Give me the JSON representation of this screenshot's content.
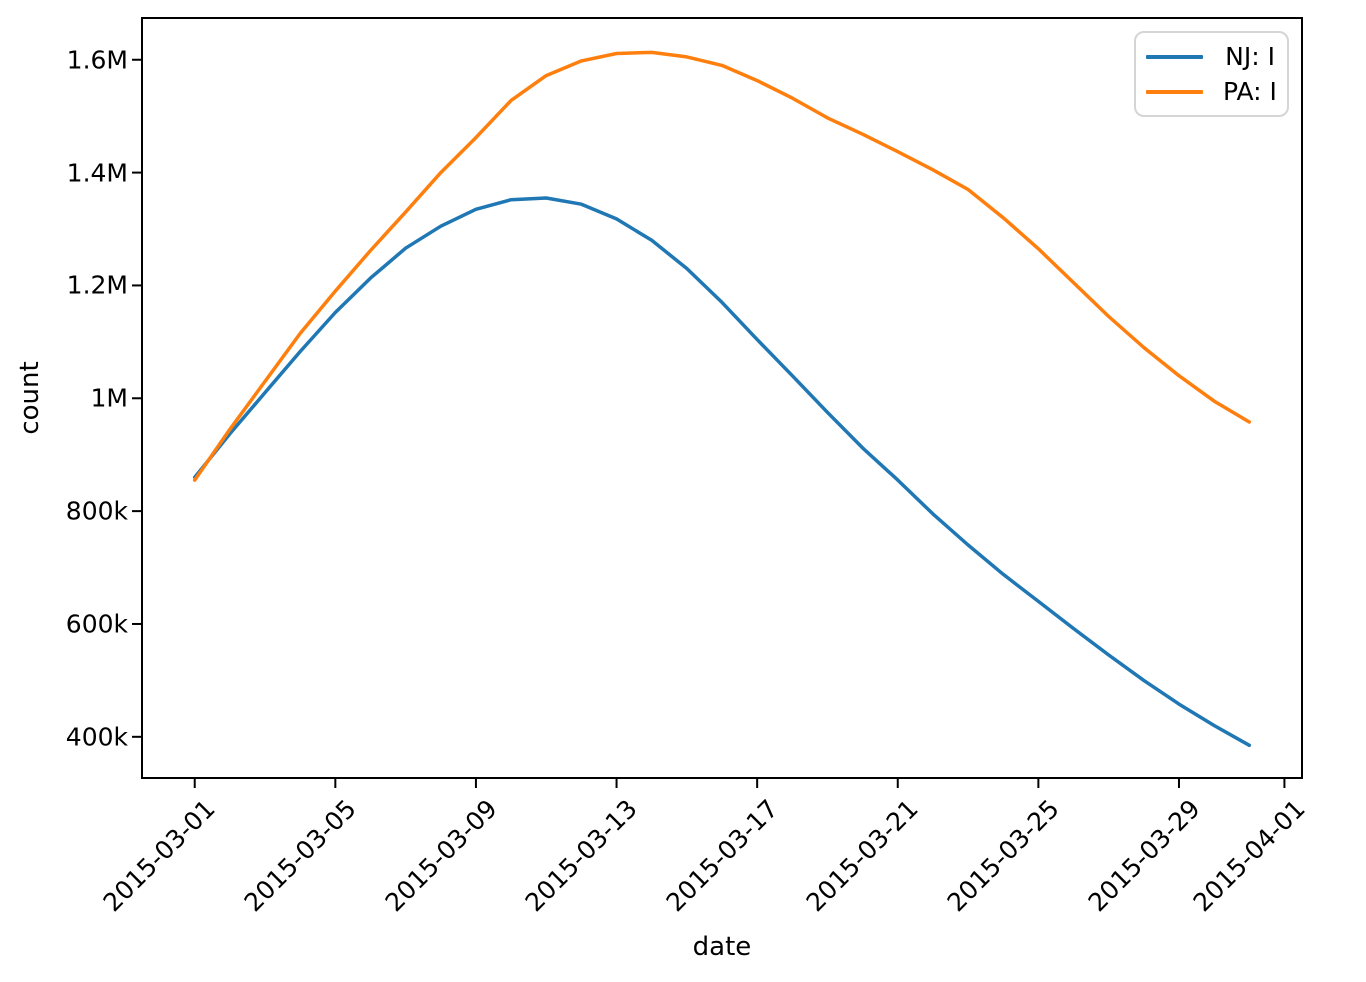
{
  "chart_data": {
    "type": "line",
    "title": "",
    "xlabel": "date",
    "ylabel": "count",
    "grid": false,
    "legend_position": "upper right",
    "x": [
      "2015-03-01",
      "2015-03-02",
      "2015-03-03",
      "2015-03-04",
      "2015-03-05",
      "2015-03-06",
      "2015-03-07",
      "2015-03-08",
      "2015-03-09",
      "2015-03-10",
      "2015-03-11",
      "2015-03-12",
      "2015-03-13",
      "2015-03-14",
      "2015-03-15",
      "2015-03-16",
      "2015-03-17",
      "2015-03-18",
      "2015-03-19",
      "2015-03-20",
      "2015-03-21",
      "2015-03-22",
      "2015-03-23",
      "2015-03-24",
      "2015-03-25",
      "2015-03-26",
      "2015-03-27",
      "2015-03-28",
      "2015-03-29",
      "2015-03-30",
      "2015-03-31"
    ],
    "series": [
      {
        "name": "NJ: I",
        "color": "#1f77b4",
        "values": [
          860000,
          937000,
          1010000,
          1083000,
          1152000,
          1213000,
          1266000,
          1305000,
          1335000,
          1352000,
          1355000,
          1344000,
          1318000,
          1280000,
          1230000,
          1170000,
          1104000,
          1040000,
          975000,
          912000,
          855000,
          795000,
          740000,
          688000,
          640000,
          592000,
          545000,
          500000,
          458000,
          420000,
          385000
        ]
      },
      {
        "name": "PA: I",
        "color": "#ff7f0e",
        "values": [
          855000,
          945000,
          1030000,
          1115000,
          1190000,
          1262000,
          1330000,
          1400000,
          1462000,
          1528000,
          1572000,
          1598000,
          1611000,
          1613000,
          1605000,
          1590000,
          1563000,
          1532000,
          1497000,
          1468000,
          1437000,
          1405000,
          1370000,
          1320000,
          1265000,
          1205000,
          1145000,
          1090000,
          1040000,
          995000,
          958000
        ]
      }
    ],
    "xlim_days": [
      -1.5,
      31.5
    ],
    "ylim": [
      327000,
      1674000
    ],
    "ytick_values": [
      400000,
      600000,
      800000,
      1000000,
      1200000,
      1400000,
      1600000
    ],
    "ytick_labels": [
      "400k",
      "600k",
      "800k",
      "1M",
      "1.2M",
      "1.4M",
      "1.6M"
    ],
    "xtick_day_indices": [
      0,
      4,
      8,
      12,
      16,
      20,
      24,
      28,
      31
    ],
    "xtick_labels": [
      "2015-03-01",
      "2015-03-05",
      "2015-03-09",
      "2015-03-13",
      "2015-03-17",
      "2015-03-21",
      "2015-03-25",
      "2015-03-29",
      "2015-04-01"
    ]
  },
  "axes": {
    "xlabel": "date",
    "ylabel": "count"
  },
  "legend": {
    "items": [
      {
        "label": "NJ: I",
        "color": "#1f77b4"
      },
      {
        "label": "PA: I",
        "color": "#ff7f0e"
      }
    ]
  },
  "style": {
    "spine_color": "#000000",
    "background": "#ffffff",
    "line_width": 3.5
  }
}
